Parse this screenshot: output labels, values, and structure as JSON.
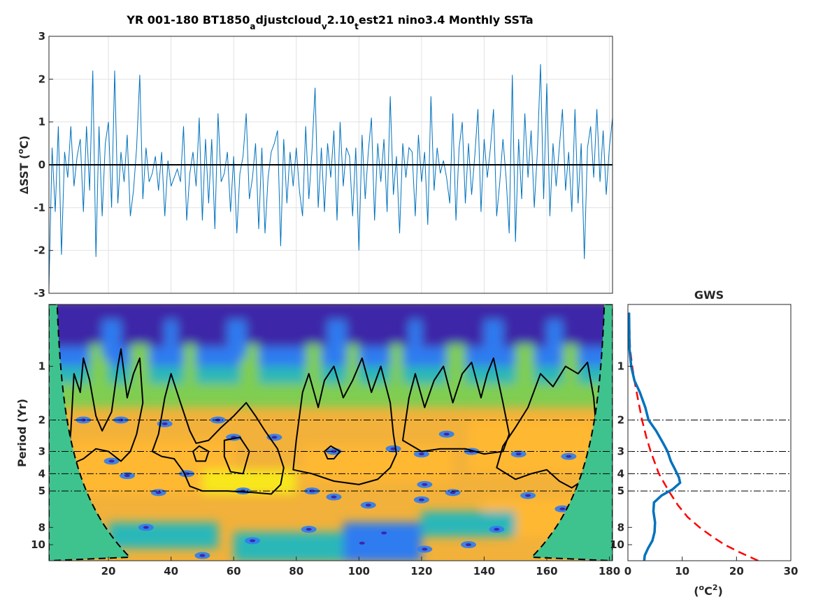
{
  "chart_data": [
    {
      "id": "timeseries",
      "type": "line",
      "title_parts": {
        "p1": "YR 001-180 BT1850",
        "s1": "a",
        "p2": "djustcloud",
        "s2": "v",
        "p3": "2.10",
        "s3": "t",
        "p4": "est21 nino3.4 Monthly SSTa"
      },
      "ylabel_prefix": "∆SST (",
      "ylabel_sup": "o",
      "ylabel_suffix": "C)",
      "xlim": [
        1,
        181
      ],
      "ylim": [
        -3,
        3
      ],
      "yticks": [
        -3,
        -2,
        -1,
        0,
        1,
        2,
        3
      ],
      "xticks": [
        20,
        40,
        60,
        80,
        100,
        120,
        140,
        160,
        180
      ],
      "grid": true,
      "line_color": "#0072bd",
      "zero_line_color": "#000000",
      "series": [
        {
          "x": [
            1.0,
            2.0,
            3.0,
            4.0,
            5.0,
            6.0,
            7.0,
            8.0,
            9.0,
            10.0,
            11.0,
            12.0,
            13.0,
            14.0,
            15.0,
            16.0,
            17.0,
            18.0,
            19.0,
            20.0,
            21.0,
            22.0,
            23.0,
            24.0,
            25.0,
            26.0,
            27.0,
            28.0,
            29.0,
            30.0,
            31.0,
            32.0,
            33.0,
            34.0,
            35.0,
            36.0,
            37.0,
            38.0,
            39.0,
            40.0,
            41.0,
            42.0,
            43.0,
            44.0,
            45.0,
            46.0,
            47.0,
            48.0,
            49.0,
            50.0,
            51.0,
            52.0,
            53.0,
            54.0,
            55.0,
            56.0,
            57.0,
            58.0,
            59.0,
            60.0,
            61.0,
            62.0,
            63.0,
            64.0,
            65.0,
            66.0,
            67.0,
            68.0,
            69.0,
            70.0,
            71.0,
            72.0,
            73.0,
            74.0,
            75.0,
            76.0,
            77.0,
            78.0,
            79.0,
            80.0,
            81.0,
            82.0,
            83.0,
            84.0,
            85.0,
            86.0,
            87.0,
            88.0,
            89.0,
            90.0,
            91.0,
            92.0,
            93.0,
            94.0,
            95.0,
            96.0,
            97.0,
            98.0,
            99.0,
            100.0,
            101.0,
            102.0,
            103.0,
            104.0,
            105.0,
            106.0,
            107.0,
            108.0,
            109.0,
            110.0,
            111.0,
            112.0,
            113.0,
            114.0,
            115.0,
            116.0,
            117.0,
            118.0,
            119.0,
            120.0,
            121.0,
            122.0,
            123.0,
            124.0,
            125.0,
            126.0,
            127.0,
            128.0,
            129.0,
            130.0,
            131.0,
            132.0,
            133.0,
            134.0,
            135.0,
            136.0,
            137.0,
            138.0,
            139.0,
            140.0,
            141.0,
            142.0,
            143.0,
            144.0,
            145.0,
            146.0,
            147.0,
            148.0,
            149.0,
            150.0,
            151.0,
            152.0,
            153.0,
            154.0,
            155.0,
            156.0,
            157.0,
            158.0,
            159.0,
            160.0,
            161.0,
            162.0,
            163.0,
            164.0,
            165.0,
            166.0,
            167.0,
            168.0,
            169.0,
            170.0,
            171.0,
            172.0,
            173.0,
            174.0,
            175.0,
            176.0,
            177.0,
            178.0,
            179.0,
            180.0,
            181.0
          ],
          "y": [
            -2.9,
            0.4,
            -1.1,
            0.9,
            -2.1,
            0.3,
            -0.3,
            0.9,
            -0.5,
            0.2,
            0.6,
            -1.1,
            0.9,
            -0.6,
            2.2,
            -2.15,
            0.9,
            -1.2,
            0.5,
            1.0,
            -1.0,
            2.2,
            -0.9,
            0.3,
            -0.4,
            0.7,
            -1.2,
            -0.6,
            0.4,
            2.1,
            -0.8,
            0.4,
            -0.4,
            -0.2,
            0.2,
            -0.6,
            0.3,
            -1.2,
            0.1,
            -0.5,
            -0.3,
            -0.1,
            -0.4,
            0.9,
            -1.3,
            -0.2,
            0.3,
            -0.5,
            1.1,
            -1.3,
            0.6,
            -0.9,
            0.6,
            -1.5,
            1.2,
            -0.4,
            -0.2,
            0.3,
            -1.1,
            0.2,
            -1.6,
            -0.2,
            0.2,
            1.2,
            -0.8,
            -0.3,
            0.5,
            -1.5,
            0.4,
            -1.6,
            -0.3,
            0.3,
            0.5,
            0.8,
            -1.9,
            0.6,
            -0.9,
            0.3,
            -0.5,
            0.4,
            -0.6,
            -1.2,
            0.9,
            -0.8,
            0.3,
            1.8,
            -1.0,
            0.4,
            -1.1,
            0.5,
            -0.3,
            0.8,
            -1.3,
            1.0,
            -0.5,
            0.4,
            0.2,
            -1.2,
            0.4,
            -2.0,
            0.7,
            -0.8,
            0.3,
            1.1,
            -1.3,
            0.5,
            -0.4,
            0.6,
            -1.1,
            1.6,
            -0.7,
            0.2,
            -1.6,
            0.5,
            -0.3,
            0.4,
            0.3,
            -1.2,
            0.7,
            -0.4,
            0.3,
            -1.4,
            1.6,
            -0.6,
            0.4,
            -0.2,
            0.1,
            -0.3,
            -0.9,
            1.2,
            -1.3,
            0.4,
            1.0,
            -0.9,
            0.5,
            -0.7,
            0.2,
            1.3,
            -1.1,
            0.6,
            -0.3,
            0.4,
            1.3,
            -1.2,
            -0.4,
            0.6,
            -0.3,
            -1.6,
            2.1,
            -1.8,
            0.6,
            -0.8,
            1.2,
            -0.3,
            0.8,
            -1.0,
            0.3,
            2.35,
            -0.8,
            1.9,
            -1.2,
            0.5,
            -0.5,
            0.4,
            1.3,
            -0.6,
            0.3,
            -1.1,
            1.3,
            -0.9,
            0.5,
            -2.2,
            0.4,
            0.9,
            -0.3,
            1.3,
            -0.4,
            0.8,
            -0.7,
            0.4,
            1.1
          ]
        }
      ]
    },
    {
      "id": "wavelet",
      "type": "heatmap",
      "ylabel": "Period (Yr)",
      "xlim": [
        1,
        181
      ],
      "ylim": [
        0.45,
        12.3
      ],
      "yscale": "log",
      "yticks": [
        1,
        2,
        3,
        4,
        5,
        8,
        10
      ],
      "xticks": [
        20,
        40,
        60,
        80,
        100,
        120,
        140,
        160,
        180
      ],
      "reference_periods": [
        2,
        3,
        4,
        5
      ],
      "colors": {
        "low": "#3e26a8",
        "mid_low": "#2f7cf0",
        "mid": "#2ab7b8",
        "mid_high": "#7fcd51",
        "high": "#ffb832",
        "peak": "#f8e71c",
        "coi_fill": "#3ec38e"
      }
    },
    {
      "id": "gws",
      "type": "line",
      "title": "GWS",
      "xlabel_prefix": "(",
      "xlabel_sup1": "o",
      "xlabel_mid": "C",
      "xlabel_sup2": "2",
      "xlabel_suffix": ")",
      "xlim": [
        0,
        30
      ],
      "xticks": [
        0,
        10,
        20,
        30
      ],
      "yticks": [
        1,
        2,
        3,
        4,
        5,
        8,
        10
      ],
      "reference_periods": [
        2,
        3,
        4,
        5
      ],
      "series": [
        {
          "style": "solid",
          "color": "#0072bd",
          "period": [
            0.5,
            0.8,
            1.0,
            1.2,
            1.4,
            1.7,
            2.0,
            2.3,
            2.7,
            3.0,
            3.4,
            3.8,
            4.2,
            4.5,
            4.9,
            5.3,
            5.8,
            6.5,
            7.5,
            8.5,
            9.5,
            10.5,
            11.5,
            12.3
          ],
          "power": [
            0.2,
            0.3,
            0.6,
            1.2,
            2.2,
            3.2,
            3.8,
            5.2,
            6.5,
            7.3,
            7.9,
            8.7,
            9.4,
            9.6,
            8.2,
            6.2,
            4.8,
            4.7,
            5.0,
            4.9,
            4.5,
            3.7,
            3.1,
            3.0
          ]
        },
        {
          "style": "dashed",
          "color": "#ff0000",
          "period": [
            0.5,
            0.8,
            1.0,
            1.2,
            1.5,
            2.0,
            2.5,
            3.0,
            3.5,
            4.0,
            5.0,
            6.0,
            7.0,
            8.0,
            9.0,
            10.0,
            11.0,
            12.3
          ],
          "power": [
            0.2,
            0.4,
            0.8,
            1.2,
            1.8,
            2.6,
            3.4,
            4.2,
            5.0,
            5.7,
            7.5,
            9.2,
            11.0,
            13.2,
            15.5,
            17.8,
            20.5,
            24.0
          ]
        }
      ]
    }
  ]
}
